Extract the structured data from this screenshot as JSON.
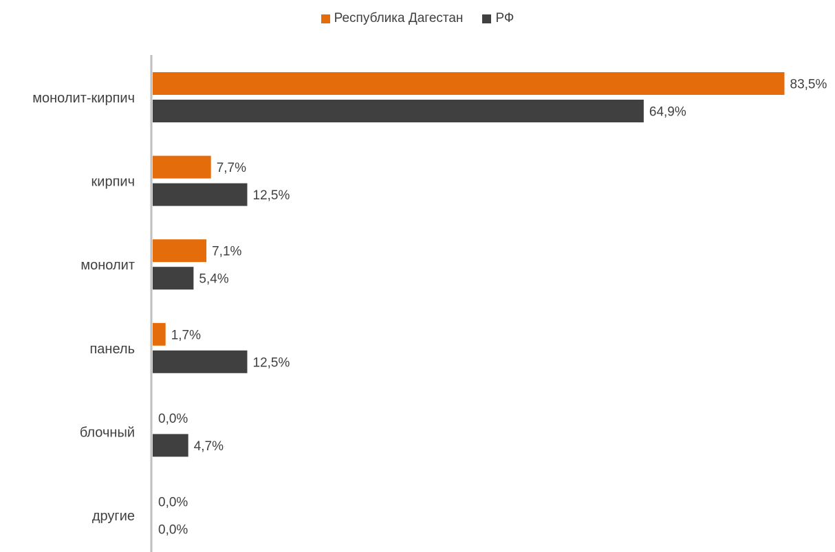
{
  "chart_data": {
    "type": "bar",
    "orientation": "horizontal",
    "categories": [
      "монолит-кирпич",
      "кирпич",
      "монолит",
      "панель",
      "блочный",
      "другие"
    ],
    "series": [
      {
        "name": "Республика Дагестан",
        "color": "#E46C0A",
        "values": [
          83.5,
          7.7,
          7.1,
          1.7,
          0.0,
          0.0
        ],
        "labels": [
          "83,5%",
          "7,7%",
          "7,1%",
          "1,7%",
          "0,0%",
          "0,0%"
        ]
      },
      {
        "name": "РФ",
        "color": "#404040",
        "values": [
          64.9,
          12.5,
          5.4,
          12.5,
          4.7,
          0.0
        ],
        "labels": [
          "64,9%",
          "12,5%",
          "5,4%",
          "12,5%",
          "4,7%",
          "0,0%"
        ]
      }
    ],
    "xlim": [
      0,
      85
    ],
    "legend": "top-center",
    "grid": false
  }
}
